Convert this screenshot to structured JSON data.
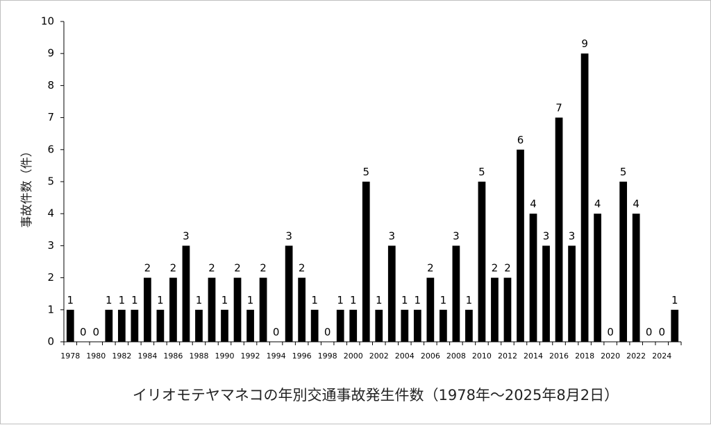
{
  "chart_data": {
    "type": "bar",
    "title": "イリオモテヤマネコの年別交通事故発生件数（1978年～2025年8月2日）",
    "xlabel": "",
    "ylabel": "事故件数（件）",
    "ylim": [
      0,
      10
    ],
    "yticks": [
      0,
      1,
      2,
      3,
      4,
      5,
      6,
      7,
      8,
      9,
      10
    ],
    "grid": false,
    "legend": "none",
    "bar_color": "#000000",
    "categories": [
      "1978",
      "1979",
      "1980",
      "1981",
      "1982",
      "1983",
      "1984",
      "1985",
      "1986",
      "1987",
      "1988",
      "1989",
      "1990",
      "1991",
      "1992",
      "1993",
      "1994",
      "1995",
      "1996",
      "1997",
      "1998",
      "1999",
      "2000",
      "2001",
      "2002",
      "2003",
      "2004",
      "2005",
      "2006",
      "2007",
      "2008",
      "2009",
      "2010",
      "2011",
      "2012",
      "2013",
      "2014",
      "2015",
      "2016",
      "2017",
      "2018",
      "2019",
      "2020",
      "2021",
      "2022",
      "2023",
      "2024",
      "2025"
    ],
    "tick_labels": [
      "1978",
      "",
      "1980",
      "",
      "1982",
      "",
      "1984",
      "",
      "1986",
      "",
      "1988",
      "",
      "1990",
      "",
      "1992",
      "",
      "1994",
      "",
      "1996",
      "",
      "1998",
      "",
      "2000",
      "",
      "2002",
      "",
      "2004",
      "",
      "2006",
      "",
      "2008",
      "",
      "2010",
      "",
      "2012",
      "",
      "2014",
      "",
      "2016",
      "",
      "2018",
      "",
      "2020",
      "",
      "2022",
      "",
      "2024",
      ""
    ],
    "values": [
      1,
      0,
      0,
      1,
      1,
      1,
      2,
      1,
      2,
      3,
      1,
      2,
      1,
      2,
      1,
      2,
      0,
      3,
      2,
      1,
      0,
      1,
      1,
      5,
      1,
      3,
      1,
      1,
      2,
      1,
      3,
      1,
      5,
      2,
      2,
      6,
      4,
      3,
      7,
      3,
      9,
      4,
      0,
      5,
      4,
      0,
      0,
      1
    ]
  }
}
